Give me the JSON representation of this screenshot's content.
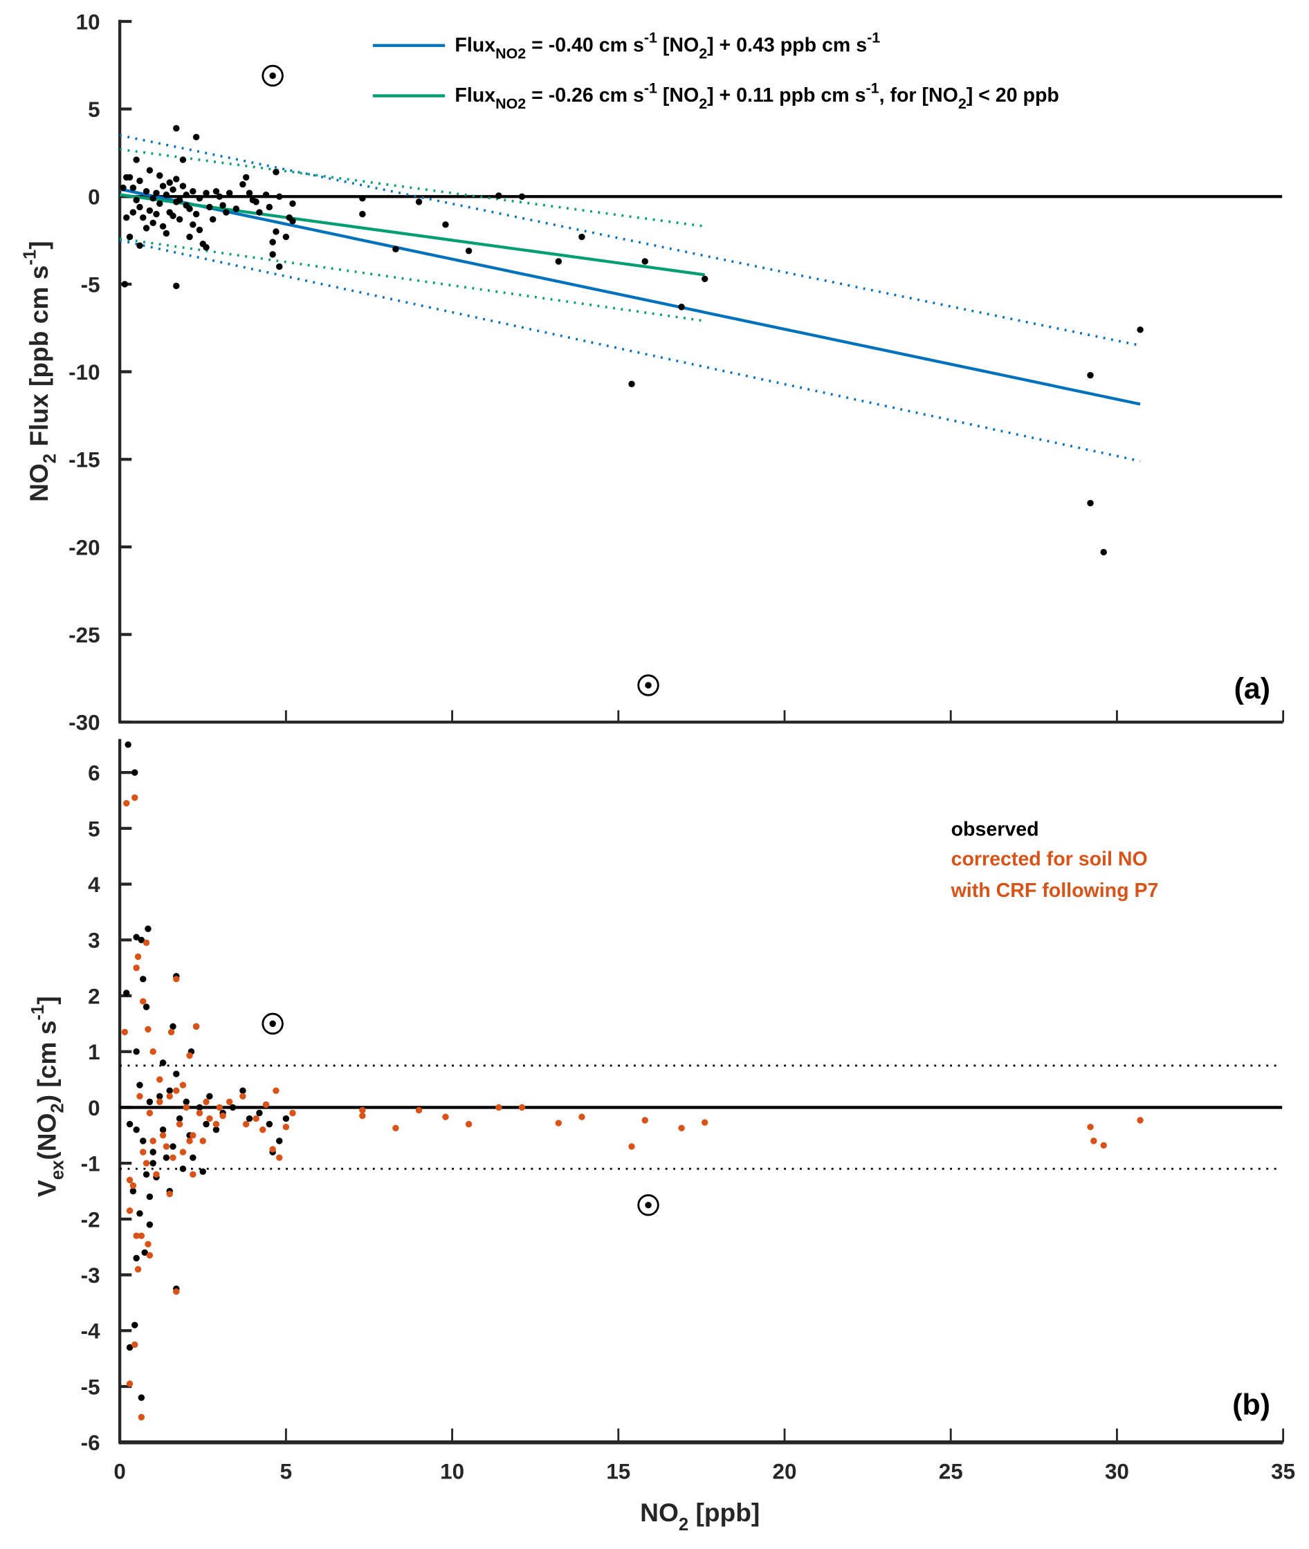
{
  "chart_data": [
    {
      "type": "scatter",
      "panel_label": "(a)",
      "ylabel": {
        "main": "NO",
        "sub": "2",
        "rest": " Flux [ppb cm s",
        "sup": "-1",
        "end": "]"
      },
      "ylim": [
        -30,
        10
      ],
      "yticks": [
        "10",
        "5",
        "0",
        "-5",
        "-10",
        "-15",
        "-20",
        "-25",
        "-30"
      ],
      "xlim": [
        0,
        35
      ],
      "legend": [
        {
          "color": "#0072BD",
          "a": "Flux",
          "sub": "NO2",
          "b": " = -0.40 cm s",
          "sup": "-1",
          "c": " [NO",
          "sub2": "2",
          "d": "] + 0.43 ppb cm s",
          "sup2": "-1",
          "e": ""
        },
        {
          "color": "#009E73",
          "a": "Flux",
          "sub": "NO2",
          "b": " = -0.26 cm s",
          "sup": "-1",
          "c": " [NO",
          "sub2": "2",
          "d": "] + 0.11 ppb cm s",
          "sup2": "-1",
          "e": ",  for [NO",
          "sub3": "2",
          "f": "] < 20 ppb"
        }
      ],
      "fits": [
        {
          "name": "all",
          "color": "#0072BD",
          "slope": -0.4,
          "intercept": 0.43,
          "xrange": [
            0,
            30.7
          ],
          "ci_upper": [
            [
              0,
              3.5
            ],
            [
              30.7,
              -8.5
            ]
          ],
          "ci_lower": [
            [
              0,
              -2.5
            ],
            [
              30.7,
              -15.1
            ]
          ]
        },
        {
          "name": "NO2<20",
          "color": "#009E73",
          "slope": -0.26,
          "intercept": 0.11,
          "xrange": [
            0,
            17.6
          ],
          "ci_upper": [
            [
              0,
              2.7
            ],
            [
              17.6,
              -1.7
            ]
          ],
          "ci_lower": [
            [
              0,
              -2.4
            ],
            [
              17.6,
              -7.1
            ]
          ]
        }
      ],
      "circled_points": [
        [
          4.6,
          6.9
        ],
        [
          15.9,
          -27.9
        ]
      ],
      "points": [
        [
          7.3,
          -0.1
        ],
        [
          7.3,
          -1.0
        ],
        [
          8.3,
          -3.0
        ],
        [
          9.0,
          -0.3
        ],
        [
          9.8,
          -1.6
        ],
        [
          10.5,
          -3.1
        ],
        [
          11.4,
          0.05
        ],
        [
          12.1,
          0
        ],
        [
          13.2,
          -3.7
        ],
        [
          13.9,
          -2.3
        ],
        [
          15.4,
          -10.7
        ],
        [
          15.8,
          -3.7
        ],
        [
          16.9,
          -6.3
        ],
        [
          17.6,
          -4.7
        ],
        [
          29.2,
          -10.2
        ],
        [
          29.2,
          -17.5
        ],
        [
          29.6,
          -20.3
        ],
        [
          30.7,
          -7.6
        ],
        [
          1.7,
          -5.1
        ],
        [
          0.15,
          -5.0
        ],
        [
          1.7,
          3.9
        ],
        [
          2.3,
          3.4
        ],
        [
          0.1,
          0.5
        ],
        [
          0.2,
          1.1
        ],
        [
          0.3,
          1.1
        ],
        [
          0.4,
          0.5
        ],
        [
          0.5,
          -0.2
        ],
        [
          0.6,
          -0.6
        ],
        [
          0.7,
          -1.2
        ],
        [
          0.8,
          0.3
        ],
        [
          0.9,
          -0.8
        ],
        [
          1.0,
          -1.5
        ],
        [
          1.1,
          0.2
        ],
        [
          1.2,
          -0.4
        ],
        [
          1.3,
          -1.7
        ],
        [
          1.4,
          0.1
        ],
        [
          1.5,
          -0.9
        ],
        [
          1.6,
          0.4
        ],
        [
          1.7,
          -0.3
        ],
        [
          1.8,
          -1.3
        ],
        [
          1.9,
          0.6
        ],
        [
          2.0,
          -0.5
        ],
        [
          2.1,
          -2.3
        ],
        [
          2.2,
          0.3
        ],
        [
          2.3,
          -1.0
        ],
        [
          2.4,
          -0.1
        ],
        [
          2.5,
          -2.7
        ],
        [
          2.6,
          0.2
        ],
        [
          2.7,
          -0.6
        ],
        [
          2.8,
          -1.3
        ],
        [
          3.0,
          0.0
        ],
        [
          3.1,
          -0.5
        ],
        [
          3.3,
          0.2
        ],
        [
          3.5,
          -0.7
        ],
        [
          3.7,
          0.7
        ],
        [
          3.8,
          1.1
        ],
        [
          3.9,
          0.2
        ],
        [
          4.0,
          -0.2
        ],
        [
          4.2,
          -0.9
        ],
        [
          4.4,
          0.1
        ],
        [
          0.3,
          -2.3
        ],
        [
          0.5,
          2.1
        ],
        [
          0.9,
          1.5
        ],
        [
          1.2,
          1.2
        ],
        [
          1.4,
          -2.1
        ],
        [
          0.6,
          -2.8
        ],
        [
          1.9,
          2.1
        ],
        [
          2.2,
          -1.6
        ],
        [
          2.6,
          -2.9
        ],
        [
          1.0,
          -0.1
        ],
        [
          0.2,
          -1.2
        ],
        [
          0.8,
          -1.8
        ],
        [
          1.1,
          -1.0
        ],
        [
          1.5,
          0.8
        ],
        [
          1.7,
          1.0
        ],
        [
          2.0,
          0.1
        ],
        [
          2.4,
          -1.9
        ],
        [
          3.2,
          -0.9
        ],
        [
          4.1,
          -0.3
        ],
        [
          4.8,
          0.0
        ],
        [
          5.2,
          -0.4
        ],
        [
          4.7,
          -2.0
        ],
        [
          4.6,
          -2.6
        ],
        [
          4.6,
          -3.3
        ],
        [
          4.8,
          -4.0
        ],
        [
          5.0,
          -2.3
        ],
        [
          5.2,
          -1.4
        ],
        [
          4.5,
          -0.6
        ],
        [
          5.1,
          -1.2
        ],
        [
          4.7,
          1.4
        ],
        [
          0.6,
          0.9
        ],
        [
          1.3,
          0.6
        ],
        [
          1.8,
          -0.2
        ],
        [
          2.9,
          0.3
        ],
        [
          0.4,
          -0.9
        ],
        [
          1.6,
          -1.1
        ],
        [
          2.1,
          -0.7
        ]
      ]
    },
    {
      "type": "scatter",
      "panel_label": "(b)",
      "ylabel": {
        "main": "V",
        "sub": "ex",
        "mid": "(NO",
        "sub2": "2",
        "rest": ") [cm s",
        "sup": "-1",
        "end": "]"
      },
      "xlabel": {
        "main": "NO",
        "sub": "2",
        "rest": " [ppb]"
      },
      "ylim": [
        -6,
        6.6
      ],
      "yticks": [
        "6",
        "5",
        "4",
        "3",
        "2",
        "1",
        "0",
        "-1",
        "-2",
        "-3",
        "-4",
        "-5",
        "-6"
      ],
      "xlim": [
        0,
        35
      ],
      "xticks": [
        "0",
        "5",
        "10",
        "15",
        "20",
        "25",
        "30",
        "35"
      ],
      "reference_lines": [
        0.75,
        -1.1
      ],
      "legend": [
        {
          "label": "observed",
          "color": "#000000"
        },
        {
          "label": "corrected for soil NO",
          "color": "#D95319"
        },
        {
          "label": "with CRF following P7",
          "color": "#D95319"
        }
      ],
      "circled_points": [
        [
          4.6,
          1.5
        ],
        [
          15.9,
          -1.75
        ]
      ],
      "observed": [
        [
          0.25,
          6.5
        ],
        [
          0.45,
          6.0
        ],
        [
          0.5,
          3.05
        ],
        [
          0.65,
          3.0
        ],
        [
          0.85,
          3.2
        ],
        [
          0.7,
          2.3
        ],
        [
          0.2,
          2.05
        ],
        [
          0.8,
          1.8
        ],
        [
          0.5,
          1.0
        ],
        [
          0.3,
          -0.3
        ],
        [
          0.4,
          -1.5
        ],
        [
          0.6,
          -1.9
        ],
        [
          0.5,
          -2.7
        ],
        [
          0.75,
          -2.6
        ],
        [
          0.9,
          -2.1
        ],
        [
          0.45,
          -3.9
        ],
        [
          0.3,
          -4.3
        ],
        [
          0.65,
          -5.2
        ],
        [
          1.7,
          2.35
        ],
        [
          1.7,
          -3.25
        ],
        [
          1.6,
          1.45
        ],
        [
          2.3,
          1.45
        ],
        [
          2.15,
          1.0
        ],
        [
          0.6,
          0.4
        ],
        [
          0.7,
          -0.6
        ],
        [
          0.8,
          -1.2
        ],
        [
          0.9,
          0.1
        ],
        [
          1.0,
          -0.8
        ],
        [
          1.1,
          -1.25
        ],
        [
          1.2,
          0.2
        ],
        [
          1.3,
          -0.4
        ],
        [
          1.4,
          -0.9
        ],
        [
          1.5,
          0.3
        ],
        [
          1.6,
          -0.7
        ],
        [
          1.7,
          0.6
        ],
        [
          1.8,
          -0.2
        ],
        [
          1.9,
          -1.1
        ],
        [
          2.0,
          0.1
        ],
        [
          2.1,
          -0.5
        ],
        [
          2.2,
          -0.9
        ],
        [
          2.4,
          0.0
        ],
        [
          2.5,
          -1.15
        ],
        [
          2.6,
          -0.3
        ],
        [
          2.7,
          0.2
        ],
        [
          2.9,
          -0.4
        ],
        [
          3.1,
          -0.1
        ],
        [
          3.4,
          0.0
        ],
        [
          3.7,
          0.3
        ],
        [
          3.9,
          -0.2
        ],
        [
          4.2,
          -0.1
        ],
        [
          4.5,
          -0.3
        ],
        [
          4.6,
          -0.8
        ],
        [
          4.8,
          -0.6
        ],
        [
          5.0,
          -0.2
        ],
        [
          1.0,
          -1.0
        ],
        [
          0.5,
          -0.4
        ],
        [
          1.3,
          0.8
        ],
        [
          0.9,
          -1.6
        ],
        [
          1.5,
          -1.5
        ]
      ],
      "corrected": [
        [
          0.2,
          5.45
        ],
        [
          0.45,
          5.55
        ],
        [
          0.55,
          2.7
        ],
        [
          0.5,
          2.5
        ],
        [
          0.8,
          2.95
        ],
        [
          0.7,
          1.9
        ],
        [
          0.15,
          1.35
        ],
        [
          0.85,
          1.4
        ],
        [
          1.0,
          1.0
        ],
        [
          0.3,
          -1.3
        ],
        [
          0.3,
          -1.85
        ],
        [
          0.5,
          -2.3
        ],
        [
          0.65,
          -2.3
        ],
        [
          0.85,
          -2.45
        ],
        [
          0.9,
          -2.65
        ],
        [
          0.55,
          -2.9
        ],
        [
          0.45,
          -4.25
        ],
        [
          0.3,
          -4.95
        ],
        [
          0.65,
          -5.55
        ],
        [
          1.7,
          2.3
        ],
        [
          1.7,
          -3.3
        ],
        [
          1.55,
          1.35
        ],
        [
          2.3,
          1.45
        ],
        [
          2.1,
          0.93
        ],
        [
          0.4,
          -1.4
        ],
        [
          7.3,
          -0.05
        ],
        [
          7.3,
          -0.15
        ],
        [
          8.3,
          -0.37
        ],
        [
          9.0,
          -0.05
        ],
        [
          9.8,
          -0.17
        ],
        [
          10.5,
          -0.3
        ],
        [
          11.4,
          0.0
        ],
        [
          12.1,
          0.0
        ],
        [
          13.2,
          -0.28
        ],
        [
          13.9,
          -0.17
        ],
        [
          15.4,
          -0.7
        ],
        [
          15.8,
          -0.23
        ],
        [
          16.9,
          -0.37
        ],
        [
          17.6,
          -0.27
        ],
        [
          29.2,
          -0.35
        ],
        [
          29.3,
          -0.6
        ],
        [
          29.6,
          -0.68
        ],
        [
          30.7,
          -0.23
        ],
        [
          0.6,
          0.2
        ],
        [
          0.7,
          -0.8
        ],
        [
          0.8,
          -1.0
        ],
        [
          0.9,
          -0.1
        ],
        [
          1.0,
          -0.6
        ],
        [
          1.1,
          -1.2
        ],
        [
          1.2,
          0.1
        ],
        [
          1.3,
          -0.5
        ],
        [
          1.4,
          -0.7
        ],
        [
          1.5,
          0.2
        ],
        [
          1.6,
          -0.9
        ],
        [
          1.7,
          0.3
        ],
        [
          1.8,
          -0.3
        ],
        [
          1.9,
          -0.8
        ],
        [
          2.0,
          0.0
        ],
        [
          2.1,
          -0.6
        ],
        [
          2.2,
          -0.5
        ],
        [
          2.4,
          -0.1
        ],
        [
          2.5,
          -0.6
        ],
        [
          2.6,
          0.1
        ],
        [
          2.7,
          -0.2
        ],
        [
          2.9,
          -0.3
        ],
        [
          3.1,
          -0.15
        ],
        [
          3.3,
          0.1
        ],
        [
          3.7,
          0.2
        ],
        [
          3.8,
          -0.3
        ],
        [
          4.1,
          -0.2
        ],
        [
          4.4,
          0.05
        ],
        [
          4.6,
          -0.75
        ],
        [
          4.7,
          0.3
        ],
        [
          4.8,
          -0.9
        ],
        [
          5.0,
          -0.35
        ],
        [
          5.2,
          -0.1
        ],
        [
          1.2,
          0.5
        ],
        [
          1.5,
          -1.55
        ],
        [
          2.2,
          -1.2
        ],
        [
          3.0,
          0.0
        ],
        [
          4.3,
          -0.4
        ],
        [
          1.9,
          0.4
        ]
      ]
    }
  ]
}
